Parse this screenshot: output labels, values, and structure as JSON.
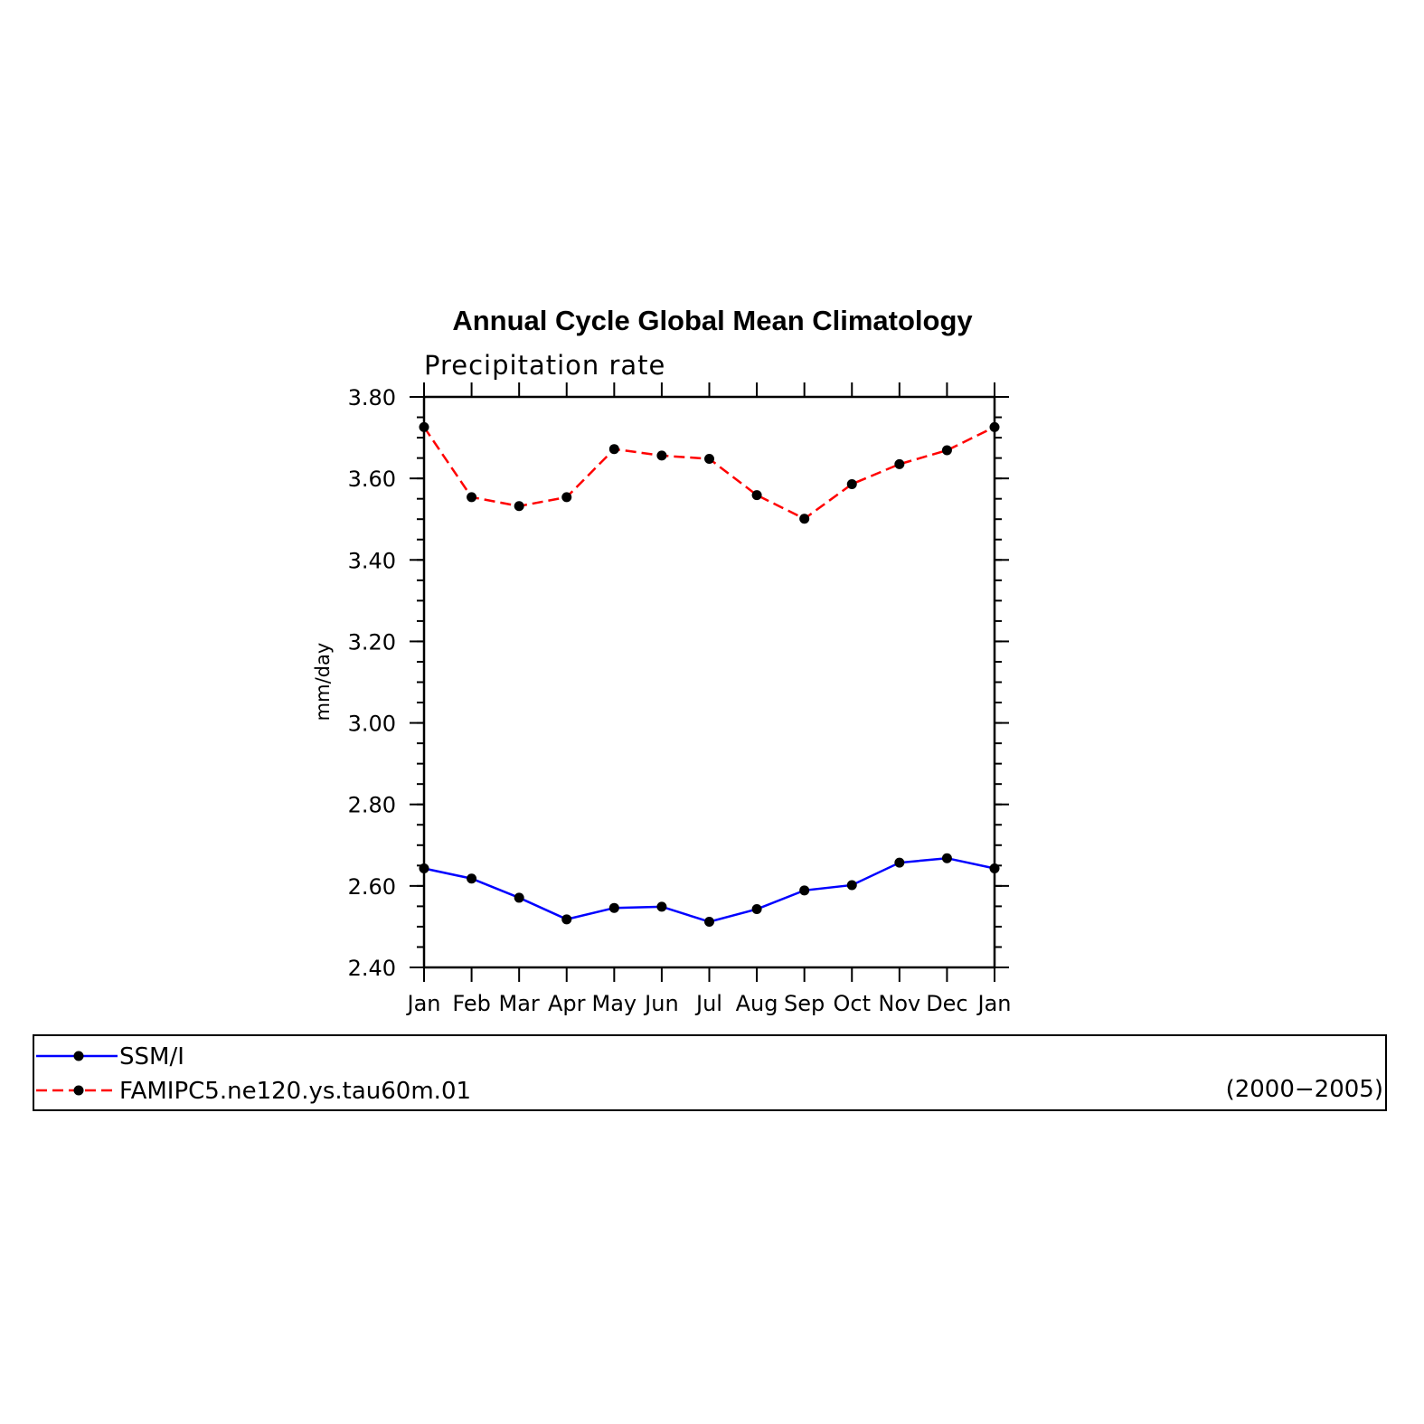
{
  "chart_data": {
    "type": "line",
    "title": "Annual Cycle Global Mean Climatology",
    "subtitle": "Precipitation rate",
    "ylabel": "mm/day",
    "xlabel": "",
    "categories": [
      "Jan",
      "Feb",
      "Mar",
      "Apr",
      "May",
      "Jun",
      "Jul",
      "Aug",
      "Sep",
      "Oct",
      "Nov",
      "Dec",
      "Jan"
    ],
    "ylim": [
      2.4,
      3.8
    ],
    "yticks": [
      "2.40",
      "2.60",
      "2.80",
      "3.00",
      "3.20",
      "3.40",
      "3.60",
      "3.80"
    ],
    "y_minor_step": 0.05,
    "series": [
      {
        "name": "SSM/I",
        "color": "#0000ff",
        "dash": "solid",
        "values": [
          2.643,
          2.618,
          2.571,
          2.518,
          2.546,
          2.549,
          2.512,
          2.543,
          2.589,
          2.602,
          2.657,
          2.668,
          2.643
        ]
      },
      {
        "name": "FAMIPC5.ne120.ys.tau60m.01",
        "color": "#ff0000",
        "dash": "dashed",
        "values": [
          3.726,
          3.554,
          3.532,
          3.554,
          3.672,
          3.656,
          3.648,
          3.559,
          3.501,
          3.586,
          3.635,
          3.669,
          3.726
        ]
      }
    ],
    "legend": {
      "placement": "bottom",
      "period": "(2000−2005)"
    },
    "marker_color": "#000000"
  }
}
